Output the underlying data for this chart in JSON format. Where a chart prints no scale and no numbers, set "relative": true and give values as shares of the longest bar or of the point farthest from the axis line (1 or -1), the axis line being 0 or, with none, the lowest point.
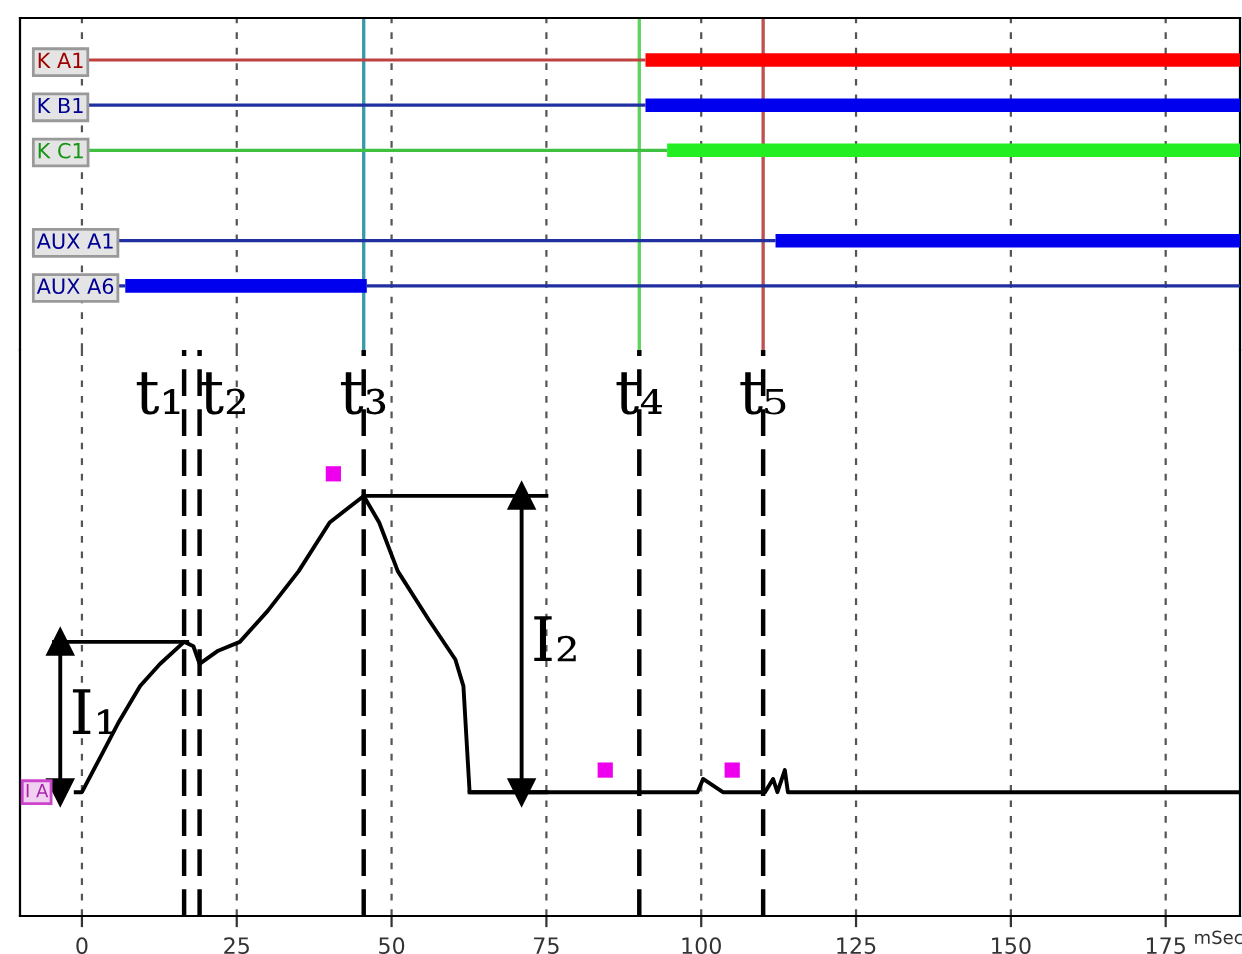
{
  "chart_data": [
    {
      "type": "bar",
      "orientation": "horizontal",
      "categories": [
        "K A1",
        "K B1",
        "K C1",
        null,
        "AUX A1",
        "AUX A6"
      ],
      "stacked": true,
      "series": [
        {
          "values": [
            91,
            91,
            94.5,
            null,
            112,
            7
          ],
          "colors": [
            "#c04040",
            "#2030a0",
            "#40c040",
            null,
            "#2030a0",
            "#2030a0"
          ]
        },
        {
          "values": [
            96,
            96,
            92.5,
            null,
            75,
            39
          ],
          "colors": [
            "#ff0000",
            "#0000ee",
            "#22ee22",
            null,
            "#0000ee",
            "#0000ee"
          ]
        },
        {
          "values": [
            0,
            0,
            0,
            null,
            0,
            141
          ],
          "colors": [
            "#c04040",
            "#2030a0",
            "#40c040",
            null,
            "#2030a0",
            "#2030a0"
          ]
        }
      ],
      "xlim": [
        -10,
        187
      ],
      "xticks": [
        0,
        25,
        50,
        75,
        100,
        125,
        150,
        175
      ],
      "tick_labels": "y",
      "grid": true,
      "ref_lines": [
        {
          "axis": "x",
          "value": 45.5,
          "color": "#3a9aa8"
        },
        {
          "axis": "x",
          "value": 90,
          "color": "#5fd35f"
        },
        {
          "axis": "x",
          "value": 110,
          "color": "#c05050"
        }
      ]
    },
    {
      "type": "line",
      "relative": true,
      "xlabel": "mSec",
      "ylabel": "I A",
      "xlim": [
        -10,
        187
      ],
      "xticks": [
        0,
        25,
        50,
        75,
        100,
        125,
        150,
        175
      ],
      "tick_labels": "x",
      "grid": "x",
      "x": [
        -1,
        0,
        3,
        6,
        9.4,
        12.6,
        16.5,
        18,
        19,
        22,
        25.5,
        30,
        35,
        40,
        45.5,
        48,
        51,
        56,
        60.3,
        61.6,
        62.6,
        99.4,
        100.3,
        103.5,
        110.3,
        111.6,
        112.3,
        113.5,
        114,
        187
      ],
      "series": [
        {
          "color": "#000000",
          "values": [
            0.28,
            0.28,
            0.36,
            0.44,
            0.52,
            0.57,
            0.62,
            0.61,
            0.57,
            0.6,
            0.62,
            0.69,
            0.78,
            0.89,
            0.95,
            0.89,
            0.78,
            0.67,
            0.58,
            0.52,
            0.28,
            0.28,
            0.31,
            0.28,
            0.28,
            0.31,
            0.28,
            0.33,
            0.28,
            0.28
          ]
        },
        {
          "type": "scatter",
          "marker": "square",
          "color": "#ee00ee",
          "x": [
            40.6,
            84.5,
            105
          ],
          "values": [
            1.0,
            0.33,
            0.33
          ]
        },
        {
          "color": "#000000",
          "marker": "triangle",
          "x": [
            -3.5,
            -3.5
          ],
          "values": [
            0.28,
            0.62
          ]
        },
        {
          "color": "#000000",
          "marker": "triangle",
          "x": [
            71,
            71
          ],
          "values": [
            0.28,
            0.95
          ]
        },
        {
          "color": "#000000",
          "x": [
            -4.5,
            17
          ],
          "values": [
            0.62,
            0.62
          ]
        },
        {
          "color": "#000000",
          "x": [
            45.5,
            75
          ],
          "values": [
            0.95,
            0.95
          ]
        },
        {
          "color": "#000000",
          "x": [
            62.6,
            75
          ],
          "values": [
            0.28,
            0.28
          ]
        }
      ],
      "annotations": [
        "I₁",
        "I₂"
      ],
      "ref_lines": [
        {
          "axis": "x",
          "value": 16.5,
          "label": "t₁",
          "color": "#000000",
          "line_style": "dashed"
        },
        {
          "axis": "x",
          "value": 19,
          "label": "t₂",
          "color": "#000000",
          "line_style": "dashed"
        },
        {
          "axis": "x",
          "value": 45.5,
          "label": "t₃",
          "color": "#000000",
          "line_style": "dashed"
        },
        {
          "axis": "x",
          "value": 90,
          "label": "t₄",
          "color": "#000000",
          "line_style": "dashed"
        },
        {
          "axis": "x",
          "value": 110,
          "label": "t₅",
          "color": "#000000",
          "line_style": "dashed"
        }
      ]
    }
  ]
}
